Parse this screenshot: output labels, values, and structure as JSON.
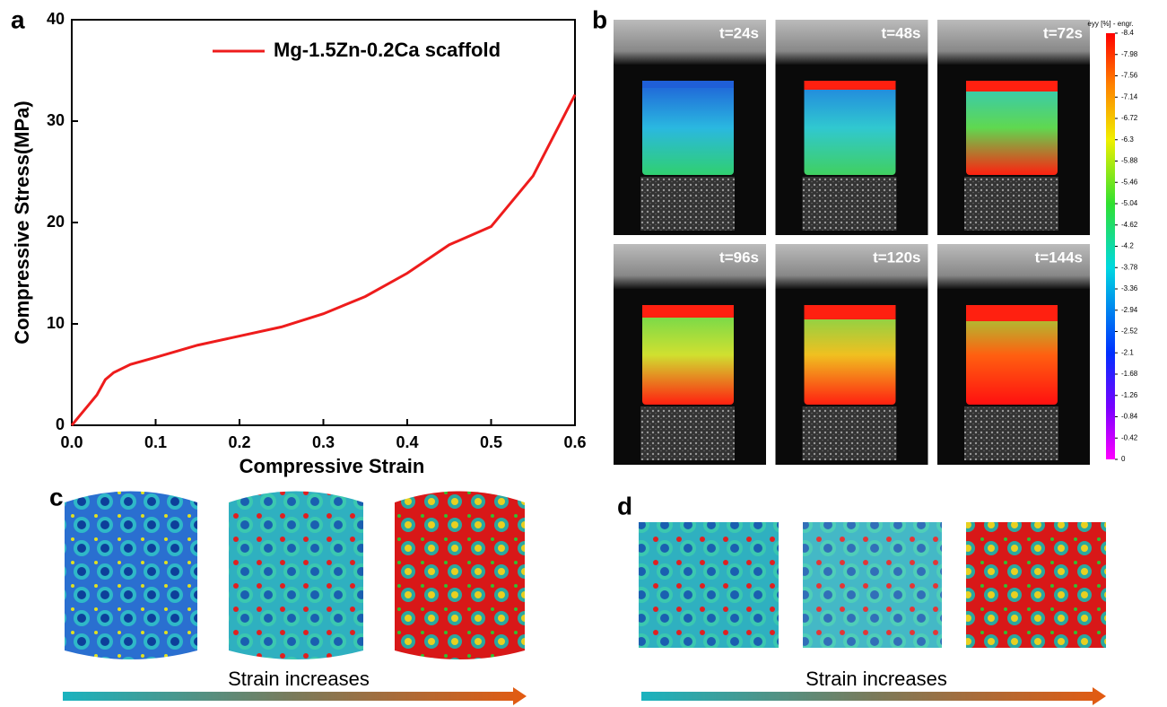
{
  "chart_data": {
    "type": "line",
    "x_label": "Compressive Strain",
    "y_label": "Compressive Stress(MPa)",
    "x": [
      0,
      0.01,
      0.02,
      0.03,
      0.04,
      0.05,
      0.07,
      0.1,
      0.15,
      0.2,
      0.25,
      0.3,
      0.35,
      0.4,
      0.45,
      0.5,
      0.55,
      0.6
    ],
    "series": [
      {
        "name": "Mg-1.5Zn-0.2Ca scaffold",
        "color": "#ee1c1c",
        "values": [
          0,
          1,
          2,
          3,
          4.5,
          5.2,
          6,
          6.7,
          7.9,
          8.8,
          9.7,
          11,
          12.7,
          15,
          17.8,
          19.6,
          24.6,
          32.6
        ]
      }
    ],
    "xlim": [
      0,
      0.6
    ],
    "ylim": [
      0,
      40
    ],
    "xticks": [
      {
        "value": 0,
        "label": "0.0"
      },
      0.1,
      0.2,
      0.3,
      0.4,
      0.5,
      0.6
    ],
    "yticks": [
      0,
      10,
      20,
      30,
      40
    ],
    "grid": false,
    "legend": "upper right"
  },
  "figure": {
    "panel_labels": [
      "a",
      "b",
      "c",
      "d"
    ],
    "dic_frames": [
      "t=24s",
      "t=48s",
      "t=72s",
      "t=96s",
      "t=120s",
      "t=144s"
    ],
    "colorbar": {
      "title": "eyy [%] - engr.",
      "range": [
        -8.4,
        0
      ],
      "ticks": [
        -8.4,
        -7.98,
        -7.56,
        -7.14,
        -6.72,
        -6.3,
        -5.88,
        -5.46,
        -5.04,
        -4.62,
        -4.2,
        -3.78,
        -3.36,
        -2.94,
        -2.52,
        -2.1,
        -1.68,
        -1.26,
        -0.84,
        -0.42,
        0
      ]
    },
    "arrow_labels": [
      "Strain increases",
      "Strain increases"
    ]
  }
}
